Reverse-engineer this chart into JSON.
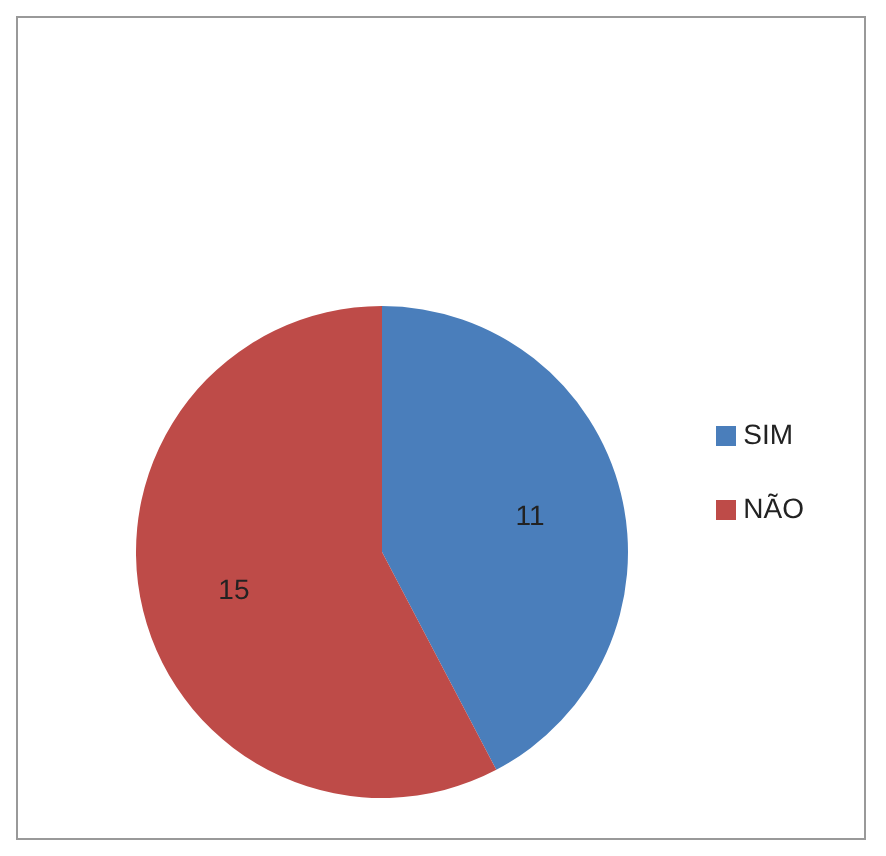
{
  "chart_data": {
    "type": "pie",
    "categories": [
      "SIM",
      "NÃO"
    ],
    "values": [
      11,
      15
    ],
    "colors": [
      "#4a7ebb",
      "#be4b48"
    ],
    "data_labels": true,
    "legend": "right"
  }
}
